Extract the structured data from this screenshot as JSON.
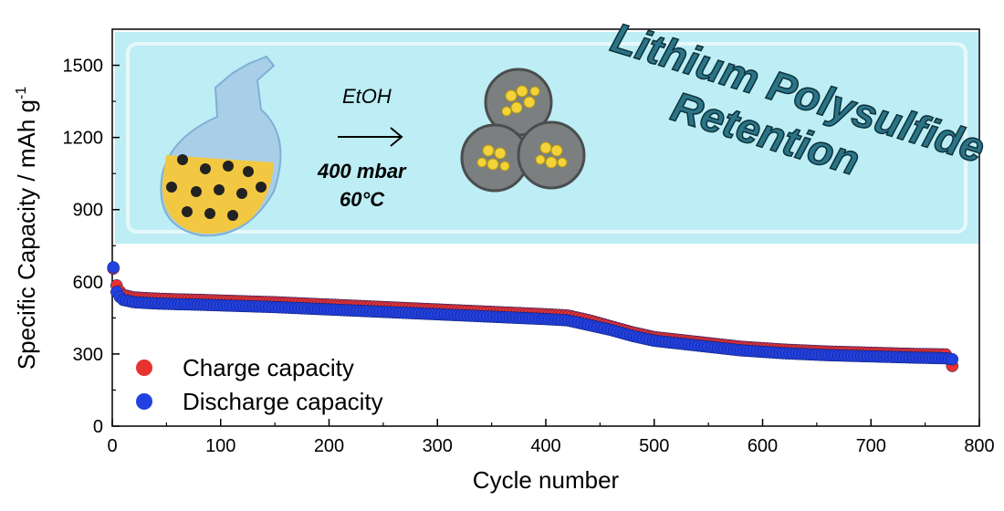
{
  "chart_data": {
    "type": "scatter",
    "xlabel": "Cycle number",
    "ylabel": "Specific Capacity / mAh g",
    "ylabel_superscript": "-1",
    "xlim": [
      0,
      800
    ],
    "ylim": [
      0,
      1650
    ],
    "xticks": [
      0,
      100,
      200,
      300,
      400,
      500,
      600,
      700,
      800
    ],
    "yticks": [
      0,
      300,
      600,
      900,
      1200,
      1500
    ],
    "grid": false,
    "legend_position": "bottom-left",
    "series": [
      {
        "name": "Charge capacity",
        "color": "#e8322f",
        "x": [
          1,
          3,
          5,
          10,
          20,
          40,
          60,
          80,
          100,
          150,
          200,
          250,
          300,
          350,
          400,
          420,
          440,
          460,
          480,
          500,
          540,
          580,
          620,
          660,
          700,
          740,
          770,
          775
        ],
        "y": [
          655,
          600,
          570,
          545,
          535,
          530,
          527,
          525,
          522,
          515,
          505,
          495,
          485,
          475,
          465,
          460,
          440,
          415,
          390,
          370,
          350,
          330,
          318,
          310,
          305,
          300,
          298,
          250
        ]
      },
      {
        "name": "Discharge capacity",
        "color": "#2241e0",
        "x": [
          1,
          3,
          5,
          10,
          20,
          40,
          60,
          80,
          100,
          150,
          200,
          250,
          300,
          350,
          400,
          420,
          440,
          460,
          480,
          500,
          540,
          580,
          620,
          660,
          700,
          740,
          770,
          775
        ],
        "y": [
          660,
          570,
          545,
          525,
          515,
          510,
          507,
          505,
          502,
          495,
          485,
          475,
          465,
          455,
          445,
          440,
          420,
          400,
          375,
          355,
          335,
          315,
          303,
          295,
          290,
          285,
          282,
          278
        ]
      }
    ]
  },
  "inset": {
    "arrow_label": "EtOH",
    "condition_pressure": "400 mbar",
    "condition_temperature": "60°C",
    "headline_line1": "Lithium Polysulfide",
    "headline_line2": "Retention"
  }
}
